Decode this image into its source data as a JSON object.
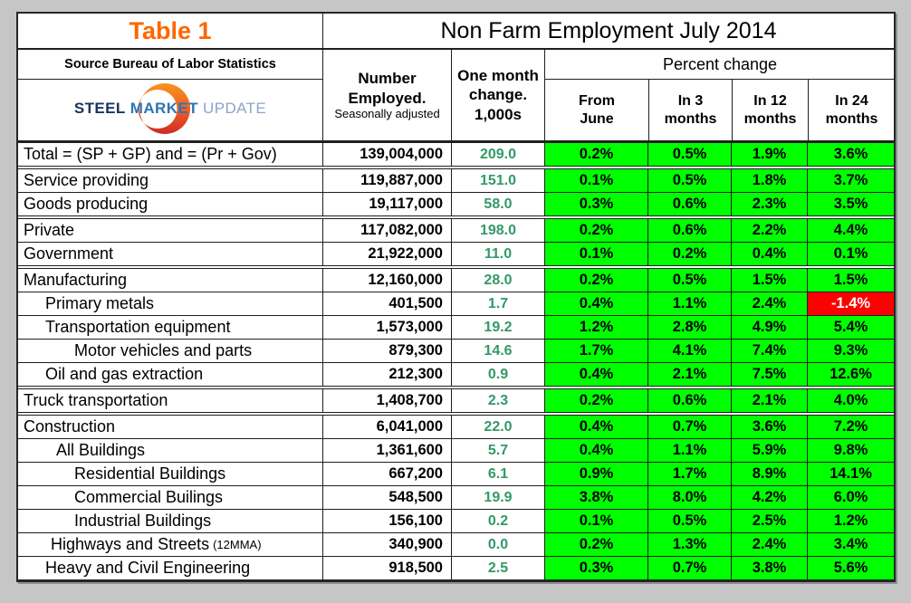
{
  "header": {
    "table_label": "Table 1",
    "title": "Non Farm Employment July 2014",
    "source": "Source Bureau of Labor Statistics",
    "logo": {
      "steel": "STEEL",
      "market": "MARKET",
      "update": "UPDATE"
    },
    "col_employed_title": "Number\nEmployed.",
    "col_employed_sub": "Seasonally adjusted",
    "col_change_title": "One month\nchange.\n1,000s",
    "percent_change": "Percent change",
    "sub_cols": [
      "From\nJune",
      "In 3\nmonths",
      "In 12\nmonths",
      "In 24\nmonths"
    ]
  },
  "colors": {
    "table_label_orange": "#FF6600",
    "positive_cell_green": "#00FF00",
    "negative_cell_red": "#FF0000",
    "negative_cell_text": "#FFFFFF",
    "one_month_change_text": "#339966",
    "logo_steel_navy": "#17365D",
    "logo_market_blue": "#2E74B5",
    "logo_update_lightblue": "#8EA4C8",
    "logo_crescent_orange": "#F79420",
    "logo_crescent_red": "#CE2B26",
    "page_background": "#C6C6C6"
  },
  "table": {
    "groups": [
      {
        "rows": [
          {
            "label": "Total = (SP + GP) and = (Pr + Gov)",
            "indent": 0,
            "employed": "139,004,000",
            "change": "209.0",
            "pct": [
              "0.2%",
              "0.5%",
              "1.9%",
              "3.6%"
            ]
          }
        ]
      },
      {
        "rows": [
          {
            "label": "Service providing",
            "indent": 0,
            "employed": "119,887,000",
            "change": "151.0",
            "pct": [
              "0.1%",
              "0.5%",
              "1.8%",
              "3.7%"
            ]
          },
          {
            "label": "Goods producing",
            "indent": 0,
            "employed": "19,117,000",
            "change": "58.0",
            "pct": [
              "0.3%",
              "0.6%",
              "2.3%",
              "3.5%"
            ]
          }
        ]
      },
      {
        "rows": [
          {
            "label": "Private",
            "indent": 0,
            "employed": "117,082,000",
            "change": "198.0",
            "pct": [
              "0.2%",
              "0.6%",
              "2.2%",
              "4.4%"
            ]
          },
          {
            "label": "Government",
            "indent": 0,
            "employed": "21,922,000",
            "change": "11.0",
            "pct": [
              "0.1%",
              "0.2%",
              "0.4%",
              "0.1%"
            ]
          }
        ]
      },
      {
        "rows": [
          {
            "label": "Manufacturing",
            "indent": 0,
            "employed": "12,160,000",
            "change": "28.0",
            "pct": [
              "0.2%",
              "0.5%",
              "1.5%",
              "1.5%"
            ]
          },
          {
            "label": "Primary metals",
            "indent": 24,
            "employed": "401,500",
            "change": "1.7",
            "pct": [
              "0.4%",
              "1.1%",
              "2.4%",
              "-1.4%"
            ],
            "neg": [
              3
            ]
          },
          {
            "label": "Transportation equipment",
            "indent": 24,
            "employed": "1,573,000",
            "change": "19.2",
            "pct": [
              "1.2%",
              "2.8%",
              "4.9%",
              "5.4%"
            ]
          },
          {
            "label": "Motor vehicles and parts",
            "indent": 56,
            "employed": "879,300",
            "change": "14.6",
            "pct": [
              "1.7%",
              "4.1%",
              "7.4%",
              "9.3%"
            ]
          },
          {
            "label": "Oil and gas extraction",
            "indent": 24,
            "employed": "212,300",
            "change": "0.9",
            "pct": [
              "0.4%",
              "2.1%",
              "7.5%",
              "12.6%"
            ]
          }
        ]
      },
      {
        "rows": [
          {
            "label": "Truck transportation",
            "indent": 0,
            "employed": "1,408,700",
            "change": "2.3",
            "pct": [
              "0.2%",
              "0.6%",
              "2.1%",
              "4.0%"
            ]
          }
        ]
      },
      {
        "rows": [
          {
            "label": "Construction",
            "indent": 0,
            "employed": "6,041,000",
            "change": "22.0",
            "pct": [
              "0.4%",
              "0.7%",
              "3.6%",
              "7.2%"
            ]
          },
          {
            "label": "All Buildings",
            "indent": 36,
            "employed": "1,361,600",
            "change": "5.7",
            "pct": [
              "0.4%",
              "1.1%",
              "5.9%",
              "9.8%"
            ]
          },
          {
            "label": "Residential Buildings",
            "indent": 56,
            "employed": "667,200",
            "change": "6.1",
            "pct": [
              "0.9%",
              "1.7%",
              "8.9%",
              "14.1%"
            ]
          },
          {
            "label": "Commercial Builings",
            "indent": 56,
            "employed": "548,500",
            "change": "19.9",
            "pct": [
              "3.8%",
              "8.0%",
              "4.2%",
              "6.0%"
            ]
          },
          {
            "label": "Industrial Buildings",
            "indent": 56,
            "employed": "156,100",
            "change": "0.2",
            "pct": [
              "0.1%",
              "0.5%",
              "2.5%",
              "1.2%"
            ]
          },
          {
            "label": "Highways and Streets",
            "suffix": "(12MMA)",
            "indent": 30,
            "employed": "340,900",
            "change": "0.0",
            "pct": [
              "0.2%",
              "1.3%",
              "2.4%",
              "3.4%"
            ]
          },
          {
            "label": "Heavy and Civil Engineering",
            "indent": 24,
            "employed": "918,500",
            "change": "2.5",
            "pct": [
              "0.3%",
              "0.7%",
              "3.8%",
              "5.6%"
            ]
          }
        ]
      }
    ]
  }
}
